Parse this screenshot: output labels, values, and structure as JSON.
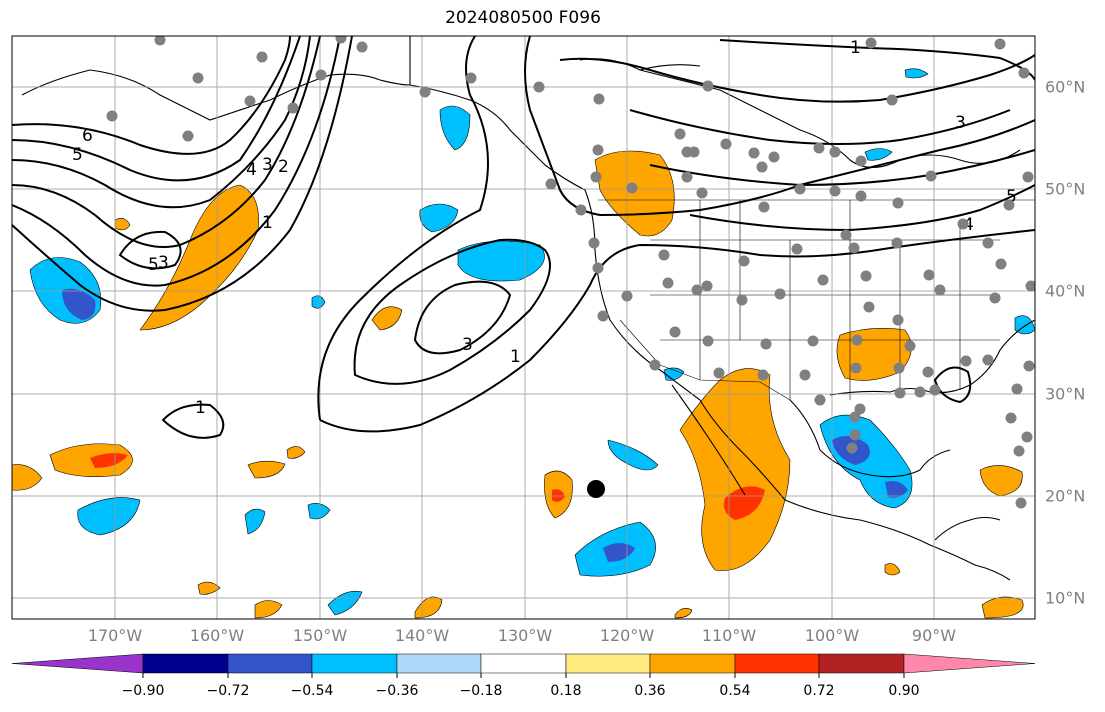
{
  "title": "2024080500 F096",
  "lon_labels": [
    "170°W",
    "160°W",
    "150°W",
    "140°W",
    "130°W",
    "120°W",
    "110°W",
    "100°W",
    "90°W"
  ],
  "lat_labels": [
    "60°N",
    "50°N",
    "40°N",
    "30°N",
    "20°N",
    "10°N"
  ],
  "contour_labels": [
    "1",
    "3",
    "5",
    "6",
    "5",
    "4",
    "3",
    "2",
    "1",
    "1",
    "3",
    "1",
    "3",
    "5",
    "4"
  ],
  "colorbar": {
    "colors": [
      "#9933cc",
      "#000090",
      "#3355cc",
      "#00bfff",
      "#add8f8",
      "#ffffff",
      "#ffea80",
      "#ffa500",
      "#ff3300",
      "#b22222",
      "#ff88aa"
    ],
    "labels": [
      "−0.90",
      "−0.72",
      "−0.54",
      "−0.36",
      "−0.18",
      "0.18",
      "0.36",
      "0.54",
      "0.72",
      "0.90"
    ]
  },
  "colors": {
    "land_outline": "#000000",
    "grid": "#999999",
    "station": "#808080",
    "marker": "#000000"
  }
}
